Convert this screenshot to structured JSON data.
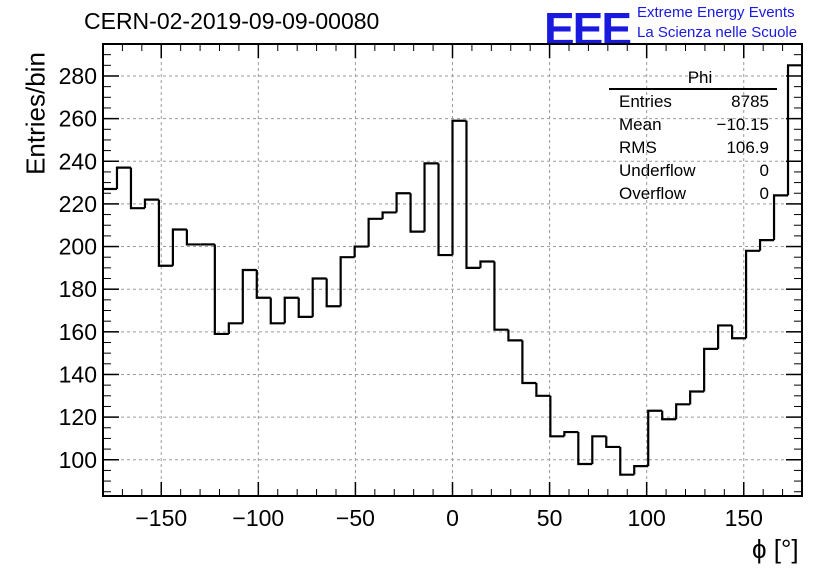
{
  "header": {
    "title": "CERN-02-2019-09-09-00080",
    "logo_text": "EEE",
    "logo_line1": "Extreme Energy Events",
    "logo_line2": "La Scienza nelle Scuole"
  },
  "stats_box": {
    "name": "Phi",
    "rows": [
      {
        "label": "Entries",
        "value": "8785"
      },
      {
        "label": "Mean",
        "value": "−10.15"
      },
      {
        "label": "RMS",
        "value": "106.9"
      },
      {
        "label": "Underflow",
        "value": "0"
      },
      {
        "label": "Overflow",
        "value": "0"
      }
    ]
  },
  "colors": {
    "logo": "#1a1adf",
    "line": "#000000",
    "grid": "#9a9a9a"
  },
  "chart_data": {
    "type": "histogram",
    "title": "CERN-02-2019-09-09-00080",
    "xlabel": "ϕ [°]",
    "ylabel": "Entries/bin",
    "xlim": [
      -180,
      180
    ],
    "ylim": [
      83,
      295
    ],
    "bin_width": 7.2,
    "grid": true,
    "x_ticks": [
      "−150",
      "−100",
      "−50",
      "0",
      "50",
      "100",
      "150"
    ],
    "y_ticks": [
      "100",
      "120",
      "140",
      "160",
      "180",
      "200",
      "220",
      "240",
      "260",
      "280"
    ],
    "bin_edges_start": -180,
    "values": [
      227,
      237,
      218,
      222,
      191,
      208,
      201,
      201,
      159,
      164,
      189,
      176,
      164,
      176,
      167,
      185,
      172,
      195,
      200,
      213,
      216,
      225,
      207,
      239,
      196,
      259,
      190,
      193,
      161,
      156,
      136,
      130,
      111,
      113,
      98,
      111,
      106,
      93,
      97,
      123,
      119,
      126,
      132,
      152,
      163,
      157,
      198,
      203,
      224,
      285
    ]
  }
}
